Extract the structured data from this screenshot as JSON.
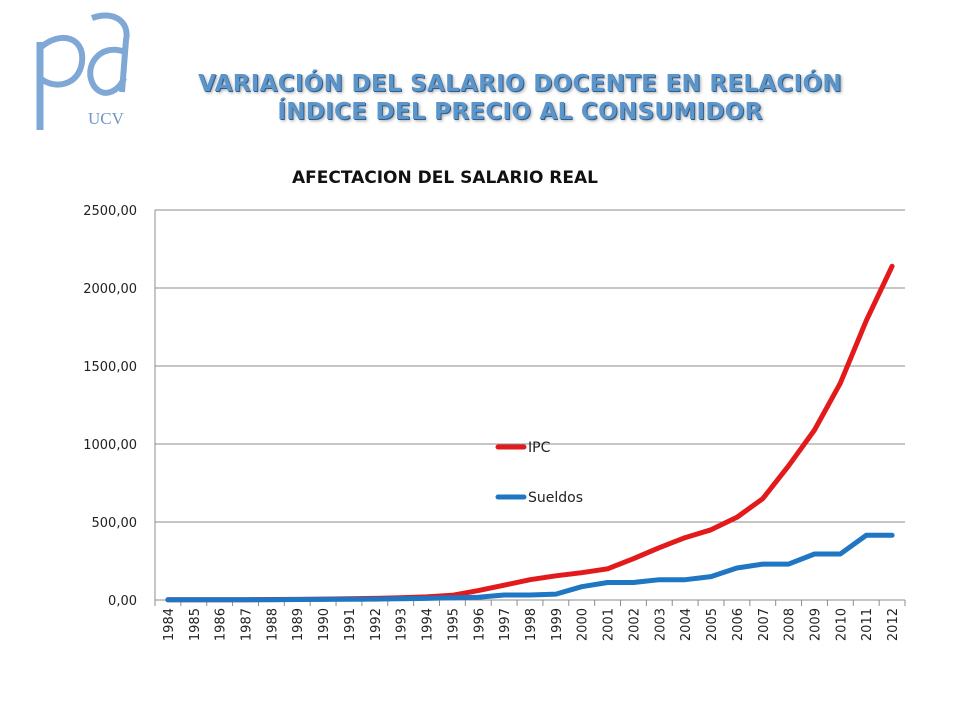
{
  "slide": {
    "title": "VARIACIÓN DEL SALARIO DOCENTE EN RELACIÓN ÍNDICE DEL PRECIO AL CONSUMIDOR",
    "logo_text": "UCV",
    "title_color": "#5b95c9"
  },
  "chart_data": {
    "type": "line",
    "title": "AFECTACION DEL SALARIO REAL",
    "xlabel": "",
    "ylabel": "",
    "x": [
      "1984",
      "1985",
      "1986",
      "1987",
      "1988",
      "1989",
      "1990",
      "1991",
      "1992",
      "1993",
      "1994",
      "1995",
      "1996",
      "1997",
      "1998",
      "1999",
      "2000",
      "2001",
      "2002",
      "2003",
      "2004",
      "2005",
      "2006",
      "2007",
      "2008",
      "2009",
      "2010",
      "2011",
      "2012"
    ],
    "ylim": [
      0,
      2500
    ],
    "yticks": [
      0,
      500,
      1000,
      1500,
      2000,
      2500
    ],
    "ytick_labels": [
      "0,00",
      "500,00",
      "1000,00",
      "1500,00",
      "2000,00",
      "2500,00"
    ],
    "grid": true,
    "legend_position": "center",
    "series": [
      {
        "name": "IPC",
        "color": "#e31a1c",
        "values": [
          1,
          1,
          2,
          2,
          3,
          4,
          6,
          8,
          10,
          15,
          20,
          30,
          60,
          95,
          130,
          155,
          175,
          200,
          265,
          335,
          400,
          450,
          530,
          650,
          860,
          1090,
          1390,
          1790,
          2140
        ]
      },
      {
        "name": "Sueldos",
        "color": "#1f77c4",
        "values": [
          1,
          1,
          1,
          1,
          2,
          3,
          4,
          5,
          6,
          8,
          10,
          14,
          18,
          32,
          32,
          38,
          85,
          112,
          112,
          130,
          130,
          150,
          205,
          230,
          230,
          295,
          295,
          415,
          415
        ]
      }
    ]
  }
}
